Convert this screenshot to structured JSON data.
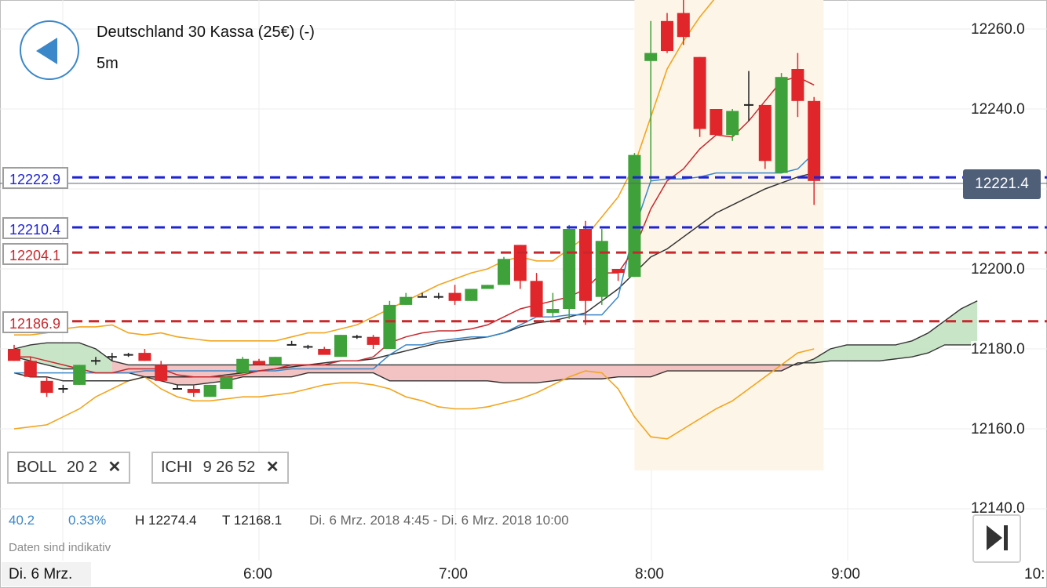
{
  "instrument": {
    "title": "Deutschland 30 Kassa (25€) (-)",
    "interval": "5m"
  },
  "last_price": "12221.4",
  "horizontal_lines": [
    {
      "label": "12222.9",
      "value": 12222.9,
      "color": "#1e23d6"
    },
    {
      "label": "12210.4",
      "value": 12210.4,
      "color": "#1e23d6"
    },
    {
      "label": "12204.1",
      "value": 12204.1,
      "color": "#c8282d"
    },
    {
      "label": "12186.9",
      "value": 12186.9,
      "color": "#c8282d"
    }
  ],
  "indicators": [
    {
      "name": "BOLL",
      "params": "20  2"
    },
    {
      "name": "ICHI",
      "params": "9  26  52"
    }
  ],
  "stats": {
    "change": "40.2",
    "change_pct": "0.33%",
    "high": "H 12274.4",
    "low": "T 12168.1",
    "range": "Di. 6 Mrz. 2018 4:45 - Di. 6 Mrz. 2018 10:00"
  },
  "note": "Daten sind indikativ",
  "date_label": "Di. 6 Mrz.",
  "x_labels": [
    "6:00",
    "7:00",
    "8:00",
    "9:00",
    "10:"
  ],
  "colors": {
    "up": "#3fa13a",
    "down": "#e0262a",
    "accent": "#3a87c9",
    "boll": "#f2a51d",
    "tenkan": "#c8282d",
    "kijun": "#3a87c9",
    "senkou": "#333333",
    "cloud_bull": "#bfe0bd",
    "cloud_bear": "#f1b7b7"
  },
  "chart_data": {
    "type": "candlestick",
    "y_ticks": [
      "12260.0",
      "12240.0",
      "12200.0",
      "12180.0",
      "12160.0",
      "12140.0"
    ],
    "ylim": [
      12136,
      12268
    ],
    "candles": [
      [
        12180,
        12181,
        12177,
        12177
      ],
      [
        12177,
        12178,
        12173,
        12173
      ],
      [
        12172,
        12173,
        12168,
        12169
      ],
      [
        12170,
        12171,
        12169,
        12170
      ],
      [
        12171,
        12176,
        12171,
        12176
      ],
      [
        12177,
        12178,
        12176,
        12177.5
      ],
      [
        12178,
        12179,
        12177,
        12178.5
      ],
      [
        12178.5,
        12179,
        12178,
        12178.5
      ],
      [
        12179,
        12180,
        12177,
        12177
      ],
      [
        12176,
        12177,
        12172,
        12172
      ],
      [
        12170,
        12171,
        12170,
        12170.5
      ],
      [
        12170,
        12171,
        12168,
        12169
      ],
      [
        12168,
        12171,
        12168,
        12171
      ],
      [
        12170,
        12173,
        12170,
        12173
      ],
      [
        12174,
        12178,
        12174,
        12177.5
      ],
      [
        12177,
        12177.5,
        12176,
        12176
      ],
      [
        12176,
        12178,
        12176,
        12178
      ],
      [
        12181,
        12182,
        12181,
        12181
      ],
      [
        12180.5,
        12181,
        12180,
        12180
      ],
      [
        12180,
        12180.5,
        12179,
        12178.5
      ],
      [
        12178,
        12183.5,
        12178,
        12183.5
      ],
      [
        12183,
        12183.5,
        12182.5,
        12183
      ],
      [
        12183,
        12183.5,
        12180,
        12181
      ],
      [
        12180,
        12192,
        12180,
        12191
      ],
      [
        12191,
        12194,
        12191,
        12193
      ],
      [
        12193,
        12194,
        12193,
        12193
      ],
      [
        12193,
        12194,
        12192.5,
        12193
      ],
      [
        12194,
        12196,
        12191,
        12192
      ],
      [
        12192,
        12195,
        12192,
        12195
      ],
      [
        12195,
        12196,
        12195,
        12196
      ],
      [
        12196,
        12203,
        12196,
        12202.5
      ],
      [
        12206,
        12206,
        12195,
        12197
      ],
      [
        12197,
        12199,
        12188,
        12188
      ],
      [
        12189,
        12194,
        12188,
        12190
      ],
      [
        12190,
        12211,
        12187.5,
        12210
      ],
      [
        12210,
        12212,
        12186,
        12192
      ],
      [
        12193,
        12210,
        12191,
        12207
      ],
      [
        12200,
        12200,
        12197,
        12199
      ],
      [
        12198,
        12229,
        12198,
        12228.5
      ],
      [
        12252,
        12262,
        12222,
        12254
      ],
      [
        12262,
        12264,
        12254,
        12254.5
      ],
      [
        12264,
        12268,
        12256,
        12258
      ],
      [
        12253,
        12253,
        12233,
        12235
      ],
      [
        12240,
        12240,
        12234,
        12233.5
      ],
      [
        12233.5,
        12240,
        12232,
        12239.5
      ],
      [
        12241,
        12249.5,
        12237,
        12241
      ],
      [
        12241,
        12241,
        12225,
        12227
      ],
      [
        12224,
        12249,
        12224,
        12248
      ],
      [
        12250,
        12254,
        12238,
        12242
      ],
      [
        12242,
        12243,
        12216,
        12222
      ]
    ],
    "bollinger": {
      "upper": [
        12183.5,
        12183.5,
        12184,
        12185,
        12185.5,
        12185.5,
        12186,
        12184,
        12183.5,
        12184,
        12183,
        12182.5,
        12182,
        12182,
        12182,
        12182,
        12182,
        12183,
        12184,
        12184,
        12185,
        12186,
        12188,
        12190,
        12192,
        12194,
        12196,
        12197.5,
        12199,
        12200,
        12202,
        12203,
        12202,
        12202,
        12205,
        12208,
        12213,
        12218,
        12226,
        12238,
        12250,
        12257,
        12263,
        12268,
        12272,
        12275,
        12277,
        12277,
        12277,
        12276
      ],
      "lower": [
        12160,
        12160.5,
        12161,
        12163,
        12165,
        12168,
        12170,
        12172,
        12173,
        12170,
        12168,
        12167,
        12167,
        12167.5,
        12168,
        12168,
        12168.5,
        12169,
        12170,
        12171,
        12171.5,
        12171.5,
        12171,
        12170,
        12168,
        12167,
        12165.5,
        12165,
        12165,
        12165.5,
        12166.5,
        12167.5,
        12169,
        12171,
        12173,
        12174.5,
        12174,
        12170,
        12163,
        12158,
        12157.5,
        12160,
        12162.5,
        12165,
        12167,
        12170,
        12173,
        12176,
        12179,
        12180
      ],
      "middle": [
        12172,
        12172.5,
        12173,
        12174,
        12175,
        12176,
        12177,
        12176.5,
        12176,
        12175.5,
        12174.5,
        12174.5,
        12174.5,
        12175,
        12175,
        12175,
        12175.5,
        12176,
        12177,
        12177.5,
        12178,
        12178.5,
        12180,
        12181,
        12182.5,
        12184,
        12185.5,
        12186.5,
        12187.5,
        12188.5,
        12190,
        12191,
        12191,
        12192,
        12194,
        12196,
        12199,
        12201,
        12205,
        12210,
        12215,
        12220,
        12224,
        12227,
        12230,
        12232,
        12234,
        12237,
        12239,
        12240
      ]
    },
    "tenkan": [
      12178,
      12178,
      12177,
      12176,
      12175,
      12174,
      12174,
      12175,
      12175,
      12175,
      12173.5,
      12173,
      12173,
      12173,
      12173.5,
      12174.5,
      12175,
      12176,
      12176,
      12176,
      12177,
      12177,
      12178,
      12181.5,
      12183,
      12184,
      12184.5,
      12184.5,
      12185,
      12186,
      12188,
      12190,
      12191,
      12192,
      12193,
      12195,
      12199,
      12199,
      12205,
      12215,
      12222,
      12225,
      12230,
      12233.5,
      12233,
      12237,
      12242,
      12247,
      12248,
      12246
    ],
    "kijun": [
      12174,
      12174,
      12174,
      12174,
      12174,
      12174,
      12174,
      12174,
      12174.5,
      12174.5,
      12174.5,
      12174.5,
      12174.5,
      12174.5,
      12174.5,
      12174.5,
      12174.5,
      12175,
      12175,
      12175,
      12175,
      12175,
      12175,
      12178.5,
      12181,
      12181,
      12182,
      12182.5,
      12183,
      12183,
      12184,
      12186,
      12188,
      12188,
      12188.5,
      12188.5,
      12188.5,
      12193,
      12210,
      12222,
      12222.5,
      12222.5,
      12223,
      12224,
      12224,
      12224,
      12224,
      12224,
      12225,
      12229
    ],
    "chikou": [
      12174,
      12173,
      12173,
      12172,
      12172,
      12172,
      12172,
      12172,
      12173,
      12173,
      12173,
      12173,
      12173,
      12173.5,
      12174,
      12174.5,
      12175,
      12175.5,
      12176,
      12176.5,
      12177,
      12177,
      12177.5,
      12178.5,
      12179.5,
      12180.5,
      12181.5,
      12182,
      12182.5,
      12183,
      12184,
      12185.5,
      12186.5,
      12187,
      12188,
      12189,
      12192,
      12195,
      12199,
      12203,
      12205,
      12208,
      12211,
      12214,
      12216,
      12218,
      12220,
      12221.5,
      12223,
      12224
    ],
    "cloud": [
      [
        12180,
        12178
      ],
      [
        12181,
        12177
      ],
      [
        12181.5,
        12176
      ],
      [
        12181.5,
        12175
      ],
      [
        12181.5,
        12175
      ],
      [
        12180,
        12174
      ],
      [
        12177,
        12174
      ],
      [
        12176,
        12174
      ],
      [
        12176,
        12173
      ],
      [
        12176,
        12172
      ],
      [
        12176,
        12171
      ],
      [
        12176,
        12171
      ],
      [
        12176,
        12171.5
      ],
      [
        12176,
        12172
      ],
      [
        12176,
        12173
      ],
      [
        12176,
        12173
      ],
      [
        12176,
        12173
      ],
      [
        12176,
        12173
      ],
      [
        12176,
        12174
      ],
      [
        12176,
        12174
      ],
      [
        12176,
        12174
      ],
      [
        12176,
        12174
      ],
      [
        12176,
        12174
      ],
      [
        12176,
        12172
      ],
      [
        12176,
        12172
      ],
      [
        12176,
        12172
      ],
      [
        12176,
        12172
      ],
      [
        12176,
        12172
      ],
      [
        12176,
        12172
      ],
      [
        12176,
        12172
      ],
      [
        12176,
        12171.5
      ],
      [
        12176,
        12171.5
      ],
      [
        12176,
        12171.5
      ],
      [
        12176,
        12172
      ],
      [
        12176,
        12172.5
      ],
      [
        12176,
        12172.5
      ],
      [
        12176,
        12172.5
      ],
      [
        12176,
        12173
      ],
      [
        12176,
        12173
      ],
      [
        12176,
        12173
      ],
      [
        12176,
        12174.5
      ],
      [
        12176,
        12174.5
      ],
      [
        12176,
        12174.5
      ],
      [
        12176,
        12174.5
      ],
      [
        12176,
        12174.5
      ],
      [
        12176,
        12174.5
      ],
      [
        12176,
        12174.5
      ],
      [
        12176,
        12174.5
      ],
      [
        12176,
        12176.5
      ],
      [
        12177.5,
        12176.5
      ],
      [
        12180,
        12177
      ],
      [
        12181,
        12177
      ],
      [
        12181,
        12177
      ],
      [
        12181,
        12177
      ],
      [
        12181,
        12177.5
      ],
      [
        12182,
        12178
      ],
      [
        12184,
        12179
      ],
      [
        12187,
        12181
      ],
      [
        12190,
        12181
      ],
      [
        12192,
        12181
      ]
    ]
  }
}
